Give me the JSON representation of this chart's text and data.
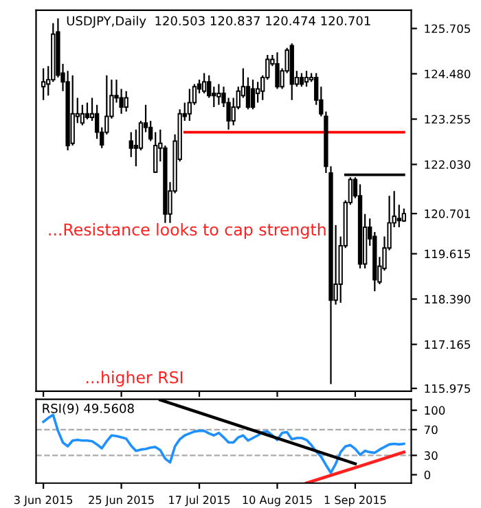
{
  "chart_data": [
    {
      "type": "candlestick",
      "title": "USDJPY,Daily  120.503 120.837 120.474 120.701",
      "annotations": [
        "...Resistance looks to cap strength",
        "...higher RSI"
      ],
      "ohlc": [
        [
          124.13,
          124.63,
          123.77,
          124.26
        ],
        [
          124.2,
          124.69,
          123.89,
          124.32
        ],
        [
          124.32,
          125.85,
          124.26,
          125.55
        ],
        [
          125.61,
          125.98,
          124.38,
          124.44
        ],
        [
          124.5,
          124.75,
          124.01,
          124.26
        ],
        [
          124.26,
          124.56,
          122.41,
          122.54
        ],
        [
          122.6,
          124.44,
          122.54,
          123.4
        ],
        [
          123.33,
          123.83,
          123.15,
          123.4
        ],
        [
          123.15,
          123.64,
          123.09,
          123.4
        ],
        [
          123.4,
          123.7,
          123.25,
          123.3
        ],
        [
          123.3,
          123.83,
          123.21,
          123.4
        ],
        [
          123.4,
          123.64,
          122.72,
          122.9
        ],
        [
          122.9,
          123.03,
          122.47,
          122.56
        ],
        [
          122.9,
          124.44,
          122.84,
          123.33
        ],
        [
          123.33,
          124.32,
          123.27,
          123.89
        ],
        [
          123.89,
          124.32,
          123.7,
          123.83
        ],
        [
          123.83,
          124.07,
          123.4,
          123.58
        ],
        [
          123.58,
          124.01,
          123.46,
          123.83
        ],
        [
          122.66,
          122.9,
          122.23,
          122.47
        ],
        [
          122.54,
          122.97,
          121.98,
          122.47
        ],
        [
          122.47,
          123.21,
          122.41,
          123.15
        ],
        [
          123.15,
          123.64,
          122.9,
          123.03
        ],
        [
          123.03,
          123.21,
          122.66,
          122.72
        ],
        [
          121.82,
          122.9,
          121.8,
          122.54
        ],
        [
          122.47,
          122.97,
          122.11,
          122.6
        ],
        [
          122.47,
          122.54,
          120.45,
          120.69
        ],
        [
          120.69,
          121.55,
          120.45,
          121.31
        ],
        [
          121.31,
          122.84,
          121.25,
          122.66
        ],
        [
          122.17,
          123.52,
          122.11,
          123.4
        ],
        [
          123.4,
          123.7,
          123.21,
          123.33
        ],
        [
          123.4,
          124.07,
          123.21,
          123.7
        ],
        [
          123.7,
          124.2,
          123.64,
          124.13
        ],
        [
          124.2,
          124.32,
          123.95,
          124.07
        ],
        [
          124.01,
          124.5,
          123.95,
          124.26
        ],
        [
          124.26,
          124.44,
          123.83,
          123.89
        ],
        [
          123.95,
          124.13,
          123.58,
          123.89
        ],
        [
          123.86,
          124.2,
          123.64,
          123.95
        ],
        [
          123.95,
          124.13,
          123.58,
          123.7
        ],
        [
          123.7,
          123.83,
          122.97,
          123.21
        ],
        [
          123.21,
          123.83,
          123.09,
          123.58
        ],
        [
          123.58,
          124.13,
          123.52,
          124.01
        ],
        [
          123.89,
          124.63,
          123.83,
          124.13
        ],
        [
          124.13,
          124.38,
          123.52,
          123.58
        ],
        [
          124.07,
          124.32,
          123.52,
          123.58
        ],
        [
          123.95,
          124.26,
          123.7,
          124.07
        ],
        [
          124.01,
          124.44,
          123.77,
          124.38
        ],
        [
          124.38,
          124.99,
          124.32,
          124.87
        ],
        [
          124.75,
          124.99,
          124.69,
          124.87
        ],
        [
          124.75,
          125.06,
          124.07,
          124.13
        ],
        [
          124.13,
          124.63,
          124.07,
          124.56
        ],
        [
          124.56,
          125.18,
          124.5,
          125.12
        ],
        [
          125.24,
          125.3,
          123.77,
          124.2
        ],
        [
          124.2,
          124.56,
          124.13,
          124.38
        ],
        [
          124.38,
          124.5,
          124.13,
          124.2
        ],
        [
          124.26,
          124.56,
          124.13,
          124.38
        ],
        [
          124.32,
          124.5,
          124.26,
          124.38
        ],
        [
          124.38,
          124.5,
          123.64,
          123.77
        ],
        [
          123.77,
          124.13,
          123.33,
          123.4
        ],
        [
          123.33,
          123.46,
          121.8,
          121.98
        ],
        [
          121.8,
          121.98,
          116.09,
          118.36
        ],
        [
          118.36,
          120.39,
          118.24,
          118.79
        ],
        [
          118.79,
          120.08,
          118.29,
          119.83
        ],
        [
          119.83,
          121.06,
          119.77,
          121.0
        ],
        [
          121.0,
          121.68,
          120.94,
          121.62
        ],
        [
          121.62,
          121.68,
          121.12,
          121.18
        ],
        [
          121.18,
          121.49,
          119.22,
          119.34
        ],
        [
          119.34,
          120.69,
          119.22,
          120.33
        ],
        [
          120.33,
          120.57,
          119.83,
          120.02
        ],
        [
          120.08,
          120.2,
          118.6,
          118.91
        ],
        [
          118.85,
          119.53,
          118.79,
          119.28
        ],
        [
          119.22,
          120.08,
          119.16,
          119.77
        ],
        [
          119.77,
          121.18,
          119.71,
          120.45
        ],
        [
          120.45,
          121.31,
          120.33,
          120.63
        ],
        [
          120.57,
          120.94,
          120.33,
          120.51
        ],
        [
          120.503,
          120.837,
          120.474,
          120.701
        ]
      ],
      "series": [
        {
          "type": "line",
          "color": "#ff0000",
          "values": [
            null,
            null,
            null,
            null,
            null,
            null,
            null,
            null,
            null,
            null,
            null,
            null,
            null,
            null,
            null,
            null,
            null,
            null,
            null,
            null,
            null,
            null,
            null,
            null,
            null,
            null,
            null,
            null,
            null,
            122.9,
            122.9,
            122.9,
            122.9,
            122.9,
            122.9,
            122.9,
            122.9,
            122.9,
            122.9,
            122.9,
            122.9,
            122.9,
            122.9,
            122.9,
            122.9,
            122.9,
            122.9,
            122.9,
            122.9,
            122.9,
            122.9,
            122.9,
            122.9,
            122.9,
            122.9,
            122.9,
            122.9,
            122.9,
            122.9,
            122.9,
            122.9,
            122.9,
            122.9,
            122.9,
            122.9,
            122.9,
            122.9,
            122.9,
            122.9,
            122.9,
            122.9,
            122.9,
            122.9,
            122.9,
            122.9
          ]
        },
        {
          "type": "line",
          "color": "#000000",
          "values": [
            null,
            null,
            null,
            null,
            null,
            null,
            null,
            null,
            null,
            null,
            null,
            null,
            null,
            null,
            null,
            null,
            null,
            null,
            null,
            null,
            null,
            null,
            null,
            null,
            null,
            null,
            null,
            null,
            null,
            null,
            null,
            null,
            null,
            null,
            null,
            null,
            null,
            null,
            null,
            null,
            null,
            null,
            null,
            null,
            null,
            null,
            null,
            null,
            null,
            null,
            null,
            null,
            null,
            null,
            null,
            null,
            null,
            null,
            null,
            null,
            null,
            null,
            121.75,
            121.75,
            121.75,
            121.75,
            121.75,
            121.75,
            121.75,
            121.75,
            121.75,
            121.75,
            121.75,
            121.75,
            121.75
          ]
        }
      ],
      "ylim": [
        115.9,
        126.2
      ],
      "yticks": [
        {
          "value": 125.705,
          "label": "125.705"
        },
        {
          "value": 124.48,
          "label": "124.480"
        },
        {
          "value": 123.255,
          "label": "123.255"
        },
        {
          "value": 122.03,
          "label": "122.030"
        },
        {
          "value": 120.701,
          "label": "120.701"
        },
        {
          "value": 119.615,
          "label": "119.615"
        },
        {
          "value": 118.39,
          "label": "118.390"
        },
        {
          "value": 117.165,
          "label": "117.165"
        },
        {
          "value": 115.975,
          "label": "115.975"
        }
      ],
      "tick_labels": "y"
    },
    {
      "type": "line",
      "title": "RSI(9) 49.5608",
      "categories": [
        "3 Jun 2015",
        null,
        null,
        null,
        null,
        null,
        null,
        null,
        null,
        null,
        null,
        null,
        null,
        null,
        null,
        null,
        "25 Jun 2015",
        null,
        null,
        null,
        null,
        null,
        null,
        null,
        null,
        null,
        null,
        null,
        null,
        null,
        null,
        null,
        "17 Jul 2015",
        null,
        null,
        null,
        null,
        null,
        null,
        null,
        null,
        null,
        null,
        null,
        null,
        null,
        null,
        null,
        "10 Aug 2015",
        null,
        null,
        null,
        null,
        null,
        null,
        null,
        null,
        null,
        null,
        null,
        null,
        null,
        null,
        null,
        "1 Sep 2015",
        null,
        null,
        null,
        null,
        null,
        null,
        null,
        null,
        null,
        null
      ],
      "series": [
        {
          "color": "#1e90ff",
          "values": [
            82,
            88,
            93,
            68,
            50,
            44,
            53,
            54,
            53,
            53,
            52,
            47,
            41,
            52,
            61,
            60,
            58,
            56,
            45,
            37,
            39,
            40,
            42,
            43,
            38,
            25,
            19,
            44,
            55,
            61,
            64,
            67,
            68,
            68,
            64,
            61,
            65,
            58,
            50,
            50,
            58,
            61,
            53,
            57,
            61,
            66,
            67,
            61,
            54,
            65,
            66,
            55,
            57,
            57,
            54,
            46,
            36,
            28,
            15,
            3,
            17,
            35,
            44,
            46,
            40,
            31,
            37,
            35,
            34,
            39,
            43,
            47,
            48,
            47,
            48
          ]
        },
        {
          "color": "#000000",
          "values": [
            null,
            null,
            null,
            null,
            null,
            null,
            null,
            null,
            null,
            null,
            null,
            null,
            null,
            null,
            null,
            null,
            null,
            null,
            null,
            null,
            null,
            null,
            null,
            null,
            116,
            null,
            null,
            null,
            null,
            null,
            null,
            null,
            null,
            null,
            null,
            null,
            null,
            null,
            null,
            null,
            null,
            null,
            null,
            null,
            null,
            null,
            null,
            null,
            null,
            null,
            null,
            null,
            null,
            null,
            null,
            null,
            null,
            null,
            null,
            null,
            null,
            null,
            null,
            null,
            17,
            null,
            null,
            null,
            null,
            null,
            null,
            null,
            null,
            null,
            null
          ]
        },
        {
          "color": "#ff2020",
          "values": [
            null,
            null,
            null,
            null,
            null,
            null,
            null,
            null,
            null,
            null,
            null,
            null,
            null,
            null,
            null,
            null,
            null,
            null,
            null,
            null,
            null,
            null,
            null,
            null,
            null,
            null,
            null,
            null,
            null,
            null,
            null,
            null,
            null,
            null,
            null,
            null,
            null,
            null,
            null,
            null,
            null,
            null,
            null,
            null,
            null,
            null,
            null,
            null,
            null,
            null,
            null,
            null,
            null,
            null,
            -13,
            null,
            null,
            null,
            null,
            null,
            null,
            null,
            null,
            null,
            null,
            null,
            null,
            null,
            null,
            null,
            null,
            null,
            null,
            null,
            35
          ]
        }
      ],
      "ylim": [
        -13,
        117
      ],
      "yticks": [
        0,
        30,
        70,
        100
      ],
      "ref_lines": [
        {
          "axis": "y",
          "value": 70,
          "color": "#aaaaaa",
          "line_style": "dashed"
        },
        {
          "axis": "y",
          "value": 30,
          "color": "#aaaaaa",
          "line_style": "dashed"
        }
      ]
    }
  ]
}
